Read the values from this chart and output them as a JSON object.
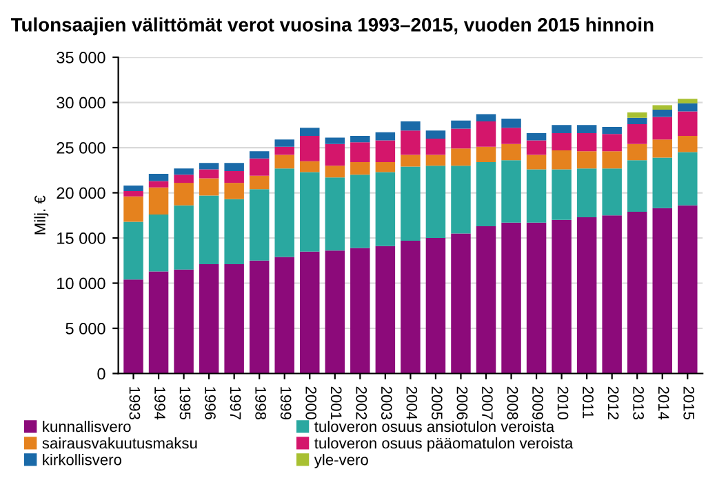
{
  "chart_data": {
    "type": "bar",
    "stacked": true,
    "title": "Tulonsaajien välittömät verot vuosina 1993–2015, vuoden 2015 hinnoin",
    "ylabel": "Milj. €",
    "categories": [
      "1993",
      "1994",
      "1995",
      "1996",
      "1997",
      "1998",
      "1999",
      "2000",
      "2001",
      "2002",
      "2003",
      "2004",
      "2005",
      "2006",
      "2007",
      "2008",
      "2009",
      "2010",
      "2011",
      "2012",
      "2013",
      "2014",
      "2015"
    ],
    "series": [
      {
        "name": "kunnallisvero",
        "color": "#8c0a7a",
        "values": [
          10400,
          11300,
          11500,
          12100,
          12100,
          12500,
          12900,
          13500,
          13600,
          13900,
          14100,
          14700,
          15000,
          15500,
          16300,
          16700,
          16700,
          17000,
          17300,
          17500,
          17900,
          18300,
          18600
        ]
      },
      {
        "name": "tuloveron osuus ansiotulon veroista",
        "color": "#2aa8a0",
        "values": [
          6400,
          6300,
          7100,
          7600,
          7200,
          7900,
          9800,
          8800,
          8100,
          8100,
          8200,
          8200,
          8000,
          7500,
          7100,
          6900,
          5900,
          5600,
          5400,
          5200,
          5700,
          5600,
          5900
        ]
      },
      {
        "name": "sairausvakuutusmaksu",
        "color": "#e5821e",
        "values": [
          2800,
          3000,
          2500,
          1900,
          1800,
          1500,
          1500,
          1200,
          1300,
          1400,
          1100,
          1300,
          1200,
          1900,
          1700,
          1800,
          1600,
          2100,
          1900,
          1900,
          1800,
          2000,
          1800
        ]
      },
      {
        "name": "tuloveron osuus pääomatulon veroista",
        "color": "#d4166b",
        "values": [
          600,
          700,
          900,
          1000,
          1300,
          1900,
          900,
          2800,
          2400,
          2200,
          2400,
          2700,
          1800,
          2200,
          2800,
          1800,
          1600,
          1900,
          2000,
          1900,
          2200,
          2500,
          2700
        ]
      },
      {
        "name": "kirkollisvero",
        "color": "#1a6aa8",
        "values": [
          600,
          800,
          700,
          700,
          900,
          800,
          800,
          900,
          700,
          700,
          900,
          1000,
          900,
          900,
          800,
          1000,
          800,
          900,
          900,
          800,
          700,
          800,
          900
        ]
      },
      {
        "name": "yle-vero",
        "color": "#a8c032",
        "values": [
          null,
          null,
          null,
          null,
          null,
          null,
          null,
          null,
          null,
          null,
          null,
          null,
          null,
          null,
          null,
          null,
          null,
          null,
          null,
          null,
          600,
          500,
          500
        ]
      }
    ],
    "ylim": [
      0,
      35000
    ],
    "yticks": [
      0,
      {
        "value": 5000,
        "label": "5 000"
      },
      {
        "value": 10000,
        "label": "10 000"
      },
      {
        "value": 15000,
        "label": "15 000"
      },
      {
        "value": 20000,
        "label": "20 000"
      },
      {
        "value": 25000,
        "label": "25 000"
      },
      {
        "value": 30000,
        "label": "30 000"
      },
      {
        "value": 35000,
        "label": "35 000"
      }
    ],
    "grid": "y",
    "legend": "bottom"
  }
}
